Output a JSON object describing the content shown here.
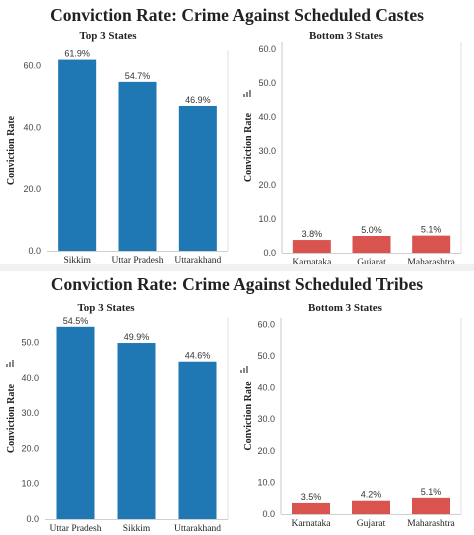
{
  "sections": [
    {
      "title": "Conviction Rate: Crime Against Scheduled Castes"
    },
    {
      "title": "Conviction Rate: Crime Against Scheduled Tribes"
    }
  ],
  "chart_data": [
    {
      "type": "bar",
      "title": "Top 3 States",
      "ylabel": "Conviction Rate",
      "categories": [
        "Sikkim",
        "Uttar Pradesh",
        "Uttarakhand"
      ],
      "values": [
        61.9,
        54.7,
        46.9
      ],
      "data_labels": [
        "61.9%",
        "54.7%",
        "46.9%"
      ],
      "ylim": [
        0,
        65
      ],
      "yticks": [
        "0.0",
        "20.0",
        "40.0",
        "60.0"
      ],
      "ytick_values": [
        0,
        20,
        40,
        60
      ],
      "color": "#1f77b4",
      "grid": false
    },
    {
      "type": "bar",
      "title": "Bottom 3 States",
      "ylabel": "Conviction Rate",
      "categories": [
        "Karnataka",
        "Gujarat",
        "Maharashtra"
      ],
      "values": [
        3.8,
        5.0,
        5.1
      ],
      "data_labels": [
        "3.8%",
        "5.0%",
        "5.1%"
      ],
      "ylim": [
        0,
        62
      ],
      "yticks": [
        "0.0",
        "10.0",
        "20.0",
        "30.0",
        "40.0",
        "50.0",
        "60.0"
      ],
      "ytick_values": [
        0,
        10,
        20,
        30,
        40,
        50,
        60
      ],
      "color": "#d9534f",
      "grid": false
    },
    {
      "type": "bar",
      "title": "Top 3 States",
      "ylabel": "Conviction Rate",
      "categories": [
        "Uttar Pradesh",
        "Sikkim",
        "Uttarakhand"
      ],
      "values": [
        54.5,
        49.9,
        44.6
      ],
      "data_labels": [
        "54.5%",
        "49.9%",
        "44.6%"
      ],
      "ylim": [
        0,
        57
      ],
      "yticks": [
        "0.0",
        "10.0",
        "20.0",
        "30.0",
        "40.0",
        "50.0"
      ],
      "ytick_values": [
        0,
        10,
        20,
        30,
        40,
        50
      ],
      "color": "#1f77b4",
      "grid": false
    },
    {
      "type": "bar",
      "title": "Bottom 3 States",
      "ylabel": "Conviction Rate",
      "categories": [
        "Karnataka",
        "Gujarat",
        "Maharashtra"
      ],
      "values": [
        3.5,
        4.2,
        5.1
      ],
      "data_labels": [
        "3.5%",
        "4.2%",
        "5.1%"
      ],
      "ylim": [
        0,
        62
      ],
      "yticks": [
        "0.0",
        "10.0",
        "20.0",
        "30.0",
        "40.0",
        "50.0",
        "60.0"
      ],
      "ytick_values": [
        0,
        10,
        20,
        30,
        40,
        50,
        60
      ],
      "color": "#d9534f",
      "grid": false
    }
  ]
}
